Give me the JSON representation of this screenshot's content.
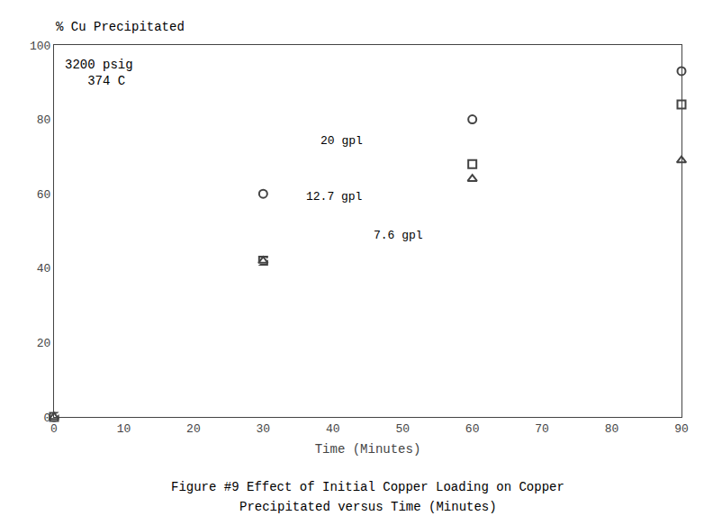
{
  "chart_data": {
    "type": "line",
    "x_label": "Time (Minutes)",
    "y_label": "% Cu Precipitated",
    "annotations": [
      "3200 psig",
      "   374 C"
    ],
    "caption": [
      "Figure #9 Effect of Initial Copper Loading on Copper",
      "Precipitated versus Time (Minutes)"
    ],
    "xlim": [
      0,
      90
    ],
    "ylim": [
      0,
      100
    ],
    "xticks": [
      0,
      10,
      20,
      30,
      40,
      50,
      60,
      70,
      80,
      90
    ],
    "yticks": [
      0,
      20,
      40,
      60,
      80,
      100
    ],
    "grid": false,
    "series": [
      {
        "name": "20 gpl",
        "marker": "circle",
        "x": [
          0,
          30,
          60,
          90
        ],
        "values": [
          0,
          60,
          80,
          93
        ]
      },
      {
        "name": "12.7 gpl",
        "marker": "square",
        "x": [
          0,
          30,
          60,
          90
        ],
        "values": [
          0,
          42,
          68,
          84
        ]
      },
      {
        "name": "7.6 gpl",
        "marker": "triangle-up",
        "x": [
          0,
          30,
          60,
          90
        ],
        "values": [
          0,
          42,
          64,
          69
        ]
      }
    ]
  }
}
